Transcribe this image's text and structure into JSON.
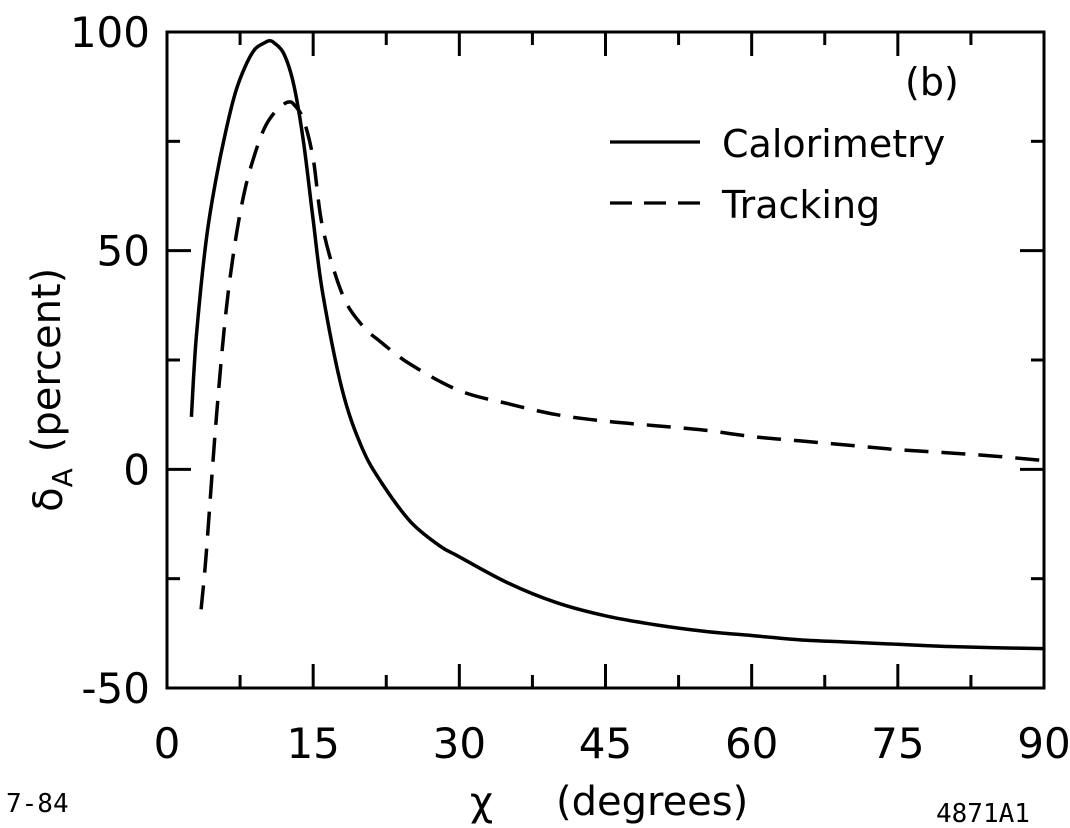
{
  "chart_data": {
    "type": "line",
    "panel_label": "(b)",
    "xlabel_symbol": "χ",
    "xlabel": "(degrees)",
    "ylabel_symbol": "δ",
    "ylabel_subscript": "A",
    "ylabel": "(percent)",
    "xlim": [
      0,
      90
    ],
    "ylim": [
      -50,
      100
    ],
    "x_ticks": [
      0,
      15,
      30,
      45,
      60,
      75,
      90
    ],
    "y_ticks": [
      -50,
      0,
      50,
      100
    ],
    "x_tick_labels": [
      "0",
      "15",
      "30",
      "45",
      "60",
      "75",
      "90"
    ],
    "y_tick_labels": [
      "-50",
      "0",
      "50",
      "100"
    ],
    "grid": false,
    "legend_position": "top-right",
    "series": [
      {
        "name": "Calorimetry",
        "style": "solid",
        "x": [
          2.5,
          3,
          4,
          5,
          6,
          7,
          8,
          9,
          10,
          10.5,
          11,
          12,
          13,
          14,
          15,
          16,
          18,
          20,
          22,
          25,
          28,
          30,
          35,
          40,
          45,
          50,
          55,
          60,
          65,
          70,
          75,
          80,
          85,
          90
        ],
        "y": [
          12,
          30,
          52,
          66,
          77,
          86,
          92,
          96,
          97.5,
          98,
          97.5,
          95,
          88,
          75,
          57,
          40,
          18,
          5,
          -3,
          -12,
          -17.5,
          -20,
          -26,
          -30.5,
          -33.5,
          -35.5,
          -37,
          -38,
          -39,
          -39.5,
          -40,
          -40.5,
          -40.8,
          -41
        ]
      },
      {
        "name": "Tracking",
        "style": "dashed",
        "x": [
          3.5,
          4,
          5,
          6,
          7,
          8,
          9,
          10,
          11,
          12,
          12.5,
          13,
          14,
          15,
          16,
          18,
          20,
          22,
          25,
          30,
          35,
          40,
          45,
          50,
          55,
          60,
          65,
          70,
          75,
          80,
          85,
          90
        ],
        "y": [
          -32,
          -20,
          10,
          35,
          52,
          64,
          72,
          78,
          81.5,
          83.5,
          84,
          83.5,
          80,
          71,
          55,
          40,
          33,
          29,
          24,
          18,
          15,
          12.5,
          11,
          10,
          9,
          7.5,
          6.5,
          5.5,
          4.5,
          3.8,
          3,
          2
        ]
      }
    ],
    "corner_left": "7-84",
    "corner_right": "4871A1"
  }
}
